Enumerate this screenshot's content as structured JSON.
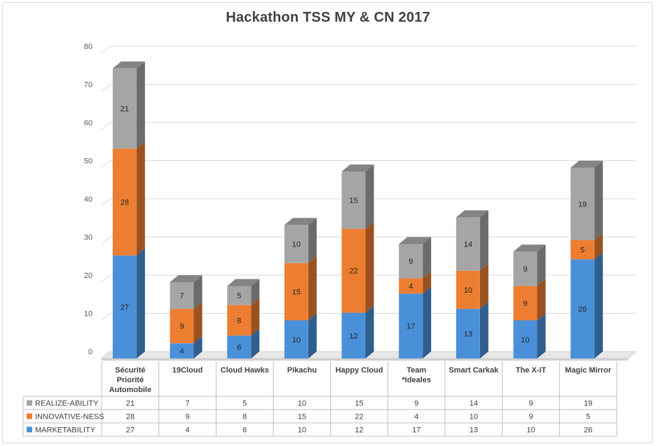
{
  "chart_data": {
    "type": "bar",
    "stacked": true,
    "three_d": true,
    "title": "Hackathon TSS MY & CN 2017",
    "categories": [
      "Sécurité Priorité Automobile",
      "19Cloud",
      "Cloud Hawks",
      "Pikachu",
      "Happy Cloud",
      "Team *Ideales",
      "Smart Carkak",
      "The X-iT",
      "Magic Mirror"
    ],
    "category_lines": [
      [
        "Sécurité",
        "Priorité",
        "Automobile"
      ],
      [
        "19Cloud"
      ],
      [
        "Cloud Hawks"
      ],
      [
        "Pikachu"
      ],
      [
        "Happy Cloud"
      ],
      [
        "Team",
        "*Ideales"
      ],
      [
        "Smart Carkak"
      ],
      [
        "The X-iT"
      ],
      [
        "Magic Mirror"
      ]
    ],
    "series": [
      {
        "name": "MARKETABILITY",
        "values": [
          27,
          4,
          6,
          10,
          12,
          17,
          13,
          10,
          26
        ],
        "color": "#4a90d9"
      },
      {
        "name": "INNOVATIVE-NESS",
        "values": [
          28,
          9,
          8,
          15,
          22,
          4,
          10,
          9,
          5
        ],
        "color": "#ed7d31"
      },
      {
        "name": "REALIZE-ABILITY",
        "values": [
          21,
          7,
          5,
          10,
          15,
          9,
          14,
          9,
          19
        ],
        "color": "#a5a5a5"
      }
    ],
    "table_row_order": [
      "REALIZE-ABILITY",
      "INNOVATIVE-NESS",
      "MARKETABILITY"
    ],
    "ylim": [
      0,
      80
    ],
    "yticks": [
      0,
      10,
      20,
      30,
      40,
      50,
      60,
      70,
      80
    ],
    "grid": true,
    "legend": "data-table"
  }
}
